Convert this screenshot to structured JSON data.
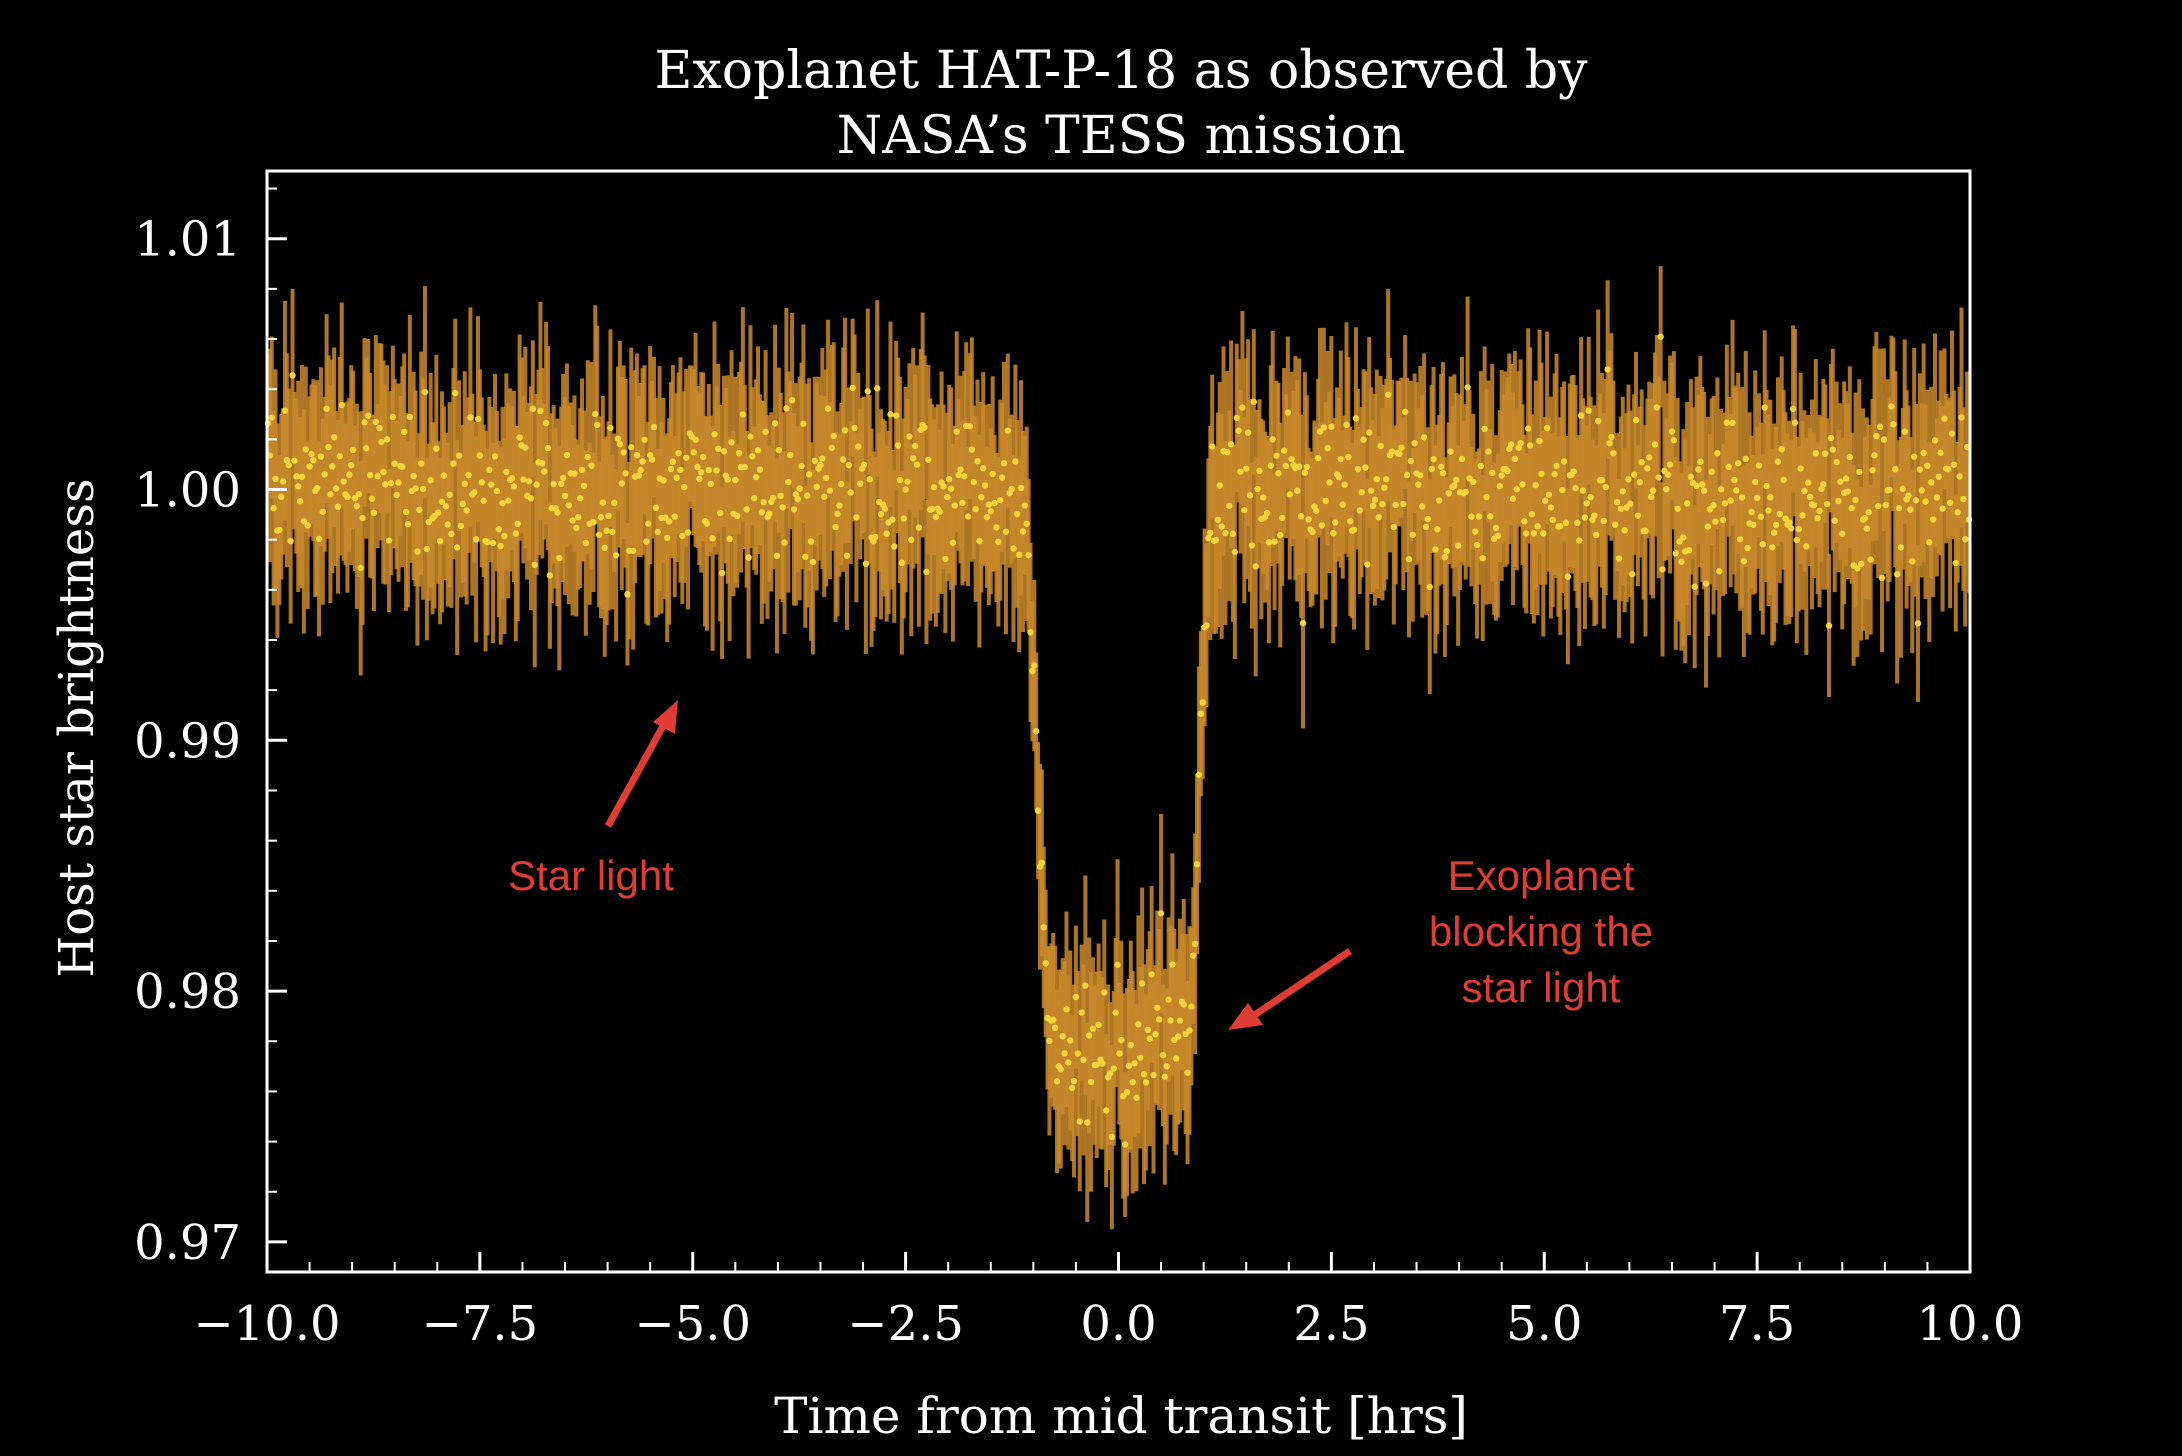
{
  "chart_data": {
    "type": "scatter",
    "title_line1": "Exoplanet HAT-P-18 as observed by",
    "title_line2": "NASA’s TESS mission",
    "xlabel": "Time from mid transit [hrs]",
    "ylabel": "Host star brightness",
    "xlim": [
      -10.0,
      10.0
    ],
    "ylim": [
      0.9688,
      1.0127
    ],
    "xticks": [
      {
        "value": -10.0,
        "label": "−10.0"
      },
      {
        "value": -7.5,
        "label": "−7.5"
      },
      {
        "value": -5.0,
        "label": "−5.0"
      },
      {
        "value": -2.5,
        "label": "−2.5"
      },
      {
        "value": 0.0,
        "label": "0.0"
      },
      {
        "value": 2.5,
        "label": "2.5"
      },
      {
        "value": 5.0,
        "label": "5.0"
      },
      {
        "value": 7.5,
        "label": "7.5"
      },
      {
        "value": 10.0,
        "label": "10.0"
      }
    ],
    "yticks": [
      {
        "value": 0.97,
        "label": "0.97"
      },
      {
        "value": 0.98,
        "label": "0.98"
      },
      {
        "value": 0.99,
        "label": "0.99"
      },
      {
        "value": 1.0,
        "label": "1.00"
      },
      {
        "value": 1.01,
        "label": "1.01"
      }
    ],
    "grid": false,
    "series": [
      {
        "point_color": "#f5d33a",
        "errorbar_color": "#c98a2b",
        "baseline_brightness": 1.0,
        "scatter_sigma": 0.0016,
        "errorbar_halfwidth": 0.0036,
        "transit_start": -1.1,
        "transit_end": 1.1,
        "transit_depth_min": 0.9775,
        "samples": 900
      }
    ],
    "annotations": [
      {
        "text": "Star light",
        "color": "#e03c36",
        "points_to": {
          "x": -5.2,
          "y": 0.9918
        }
      },
      {
        "lines": [
          "Exoplanet",
          "blocking the",
          "star light"
        ],
        "color": "#e03c36",
        "points_to": {
          "x": 1.2,
          "y": 0.9786
        }
      }
    ]
  },
  "colors": {
    "background": "#000000",
    "axes": "#ffffff",
    "text": "#ffffff",
    "annotation": "#e03c36"
  }
}
